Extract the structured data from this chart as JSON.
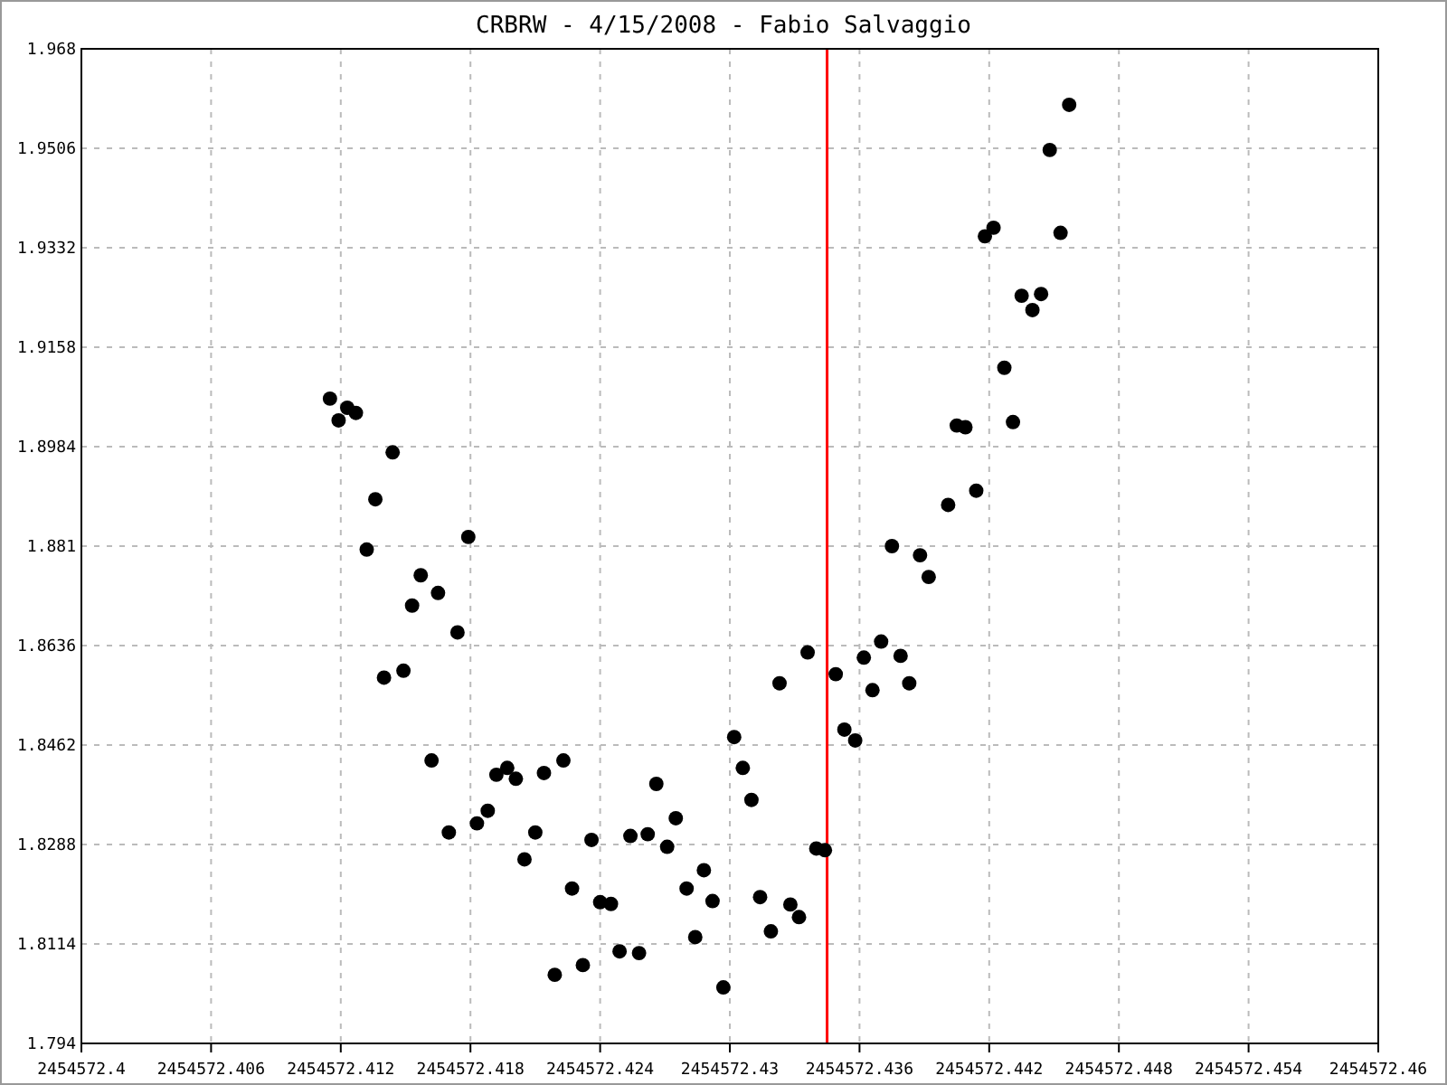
{
  "chart_data": {
    "type": "scatter",
    "title": "CRBRW - 4/15/2008 - Fabio Salvaggio",
    "x": [
      2454572.4115,
      2454572.4123,
      2454572.4127,
      2454572.4119,
      2454572.4144,
      2454572.4136,
      2454572.4179,
      2454572.4132,
      2454572.4157,
      2454572.4165,
      2454572.4153,
      2454572.4174,
      2454572.4149,
      2454572.414,
      2454572.4162,
      2454572.4223,
      2454572.4197,
      2454572.4192,
      2454572.4201,
      2454572.4214,
      2454572.4188,
      2454572.4183,
      2454572.417,
      2454572.421,
      2454572.4205,
      2454572.4227,
      2454572.4219,
      2454572.4232,
      2454572.4236,
      2454572.424,
      2454572.4245,
      2454572.4249,
      2454572.4258,
      2454572.4254,
      2454572.4262,
      2454572.4266,
      2454572.4275,
      2454572.4271,
      2454572.428,
      2454572.4288,
      2454572.4284,
      2454572.4292,
      2454572.4297,
      2454572.4302,
      2454572.4306,
      2454572.431,
      2454572.4314,
      2454572.4328,
      2454572.4319,
      2454572.4332,
      2454572.434,
      2454572.4344,
      2454572.4323,
      2454572.4336,
      2454572.4349,
      2454572.4353,
      2454572.4358,
      2454572.4362,
      2454572.4366,
      2454572.437,
      2454572.4379,
      2454572.4383,
      2454572.4375,
      2454572.4388,
      2454572.4392,
      2454572.4401,
      2454572.4414,
      2454572.4405,
      2454572.4409,
      2454572.4431,
      2454572.4427,
      2454572.4435,
      2454572.4444,
      2454572.444,
      2454572.4418,
      2454572.4422,
      2454572.4453,
      2454572.4448,
      2454572.4457
    ],
    "values": [
      1.9068,
      1.9052,
      1.9043,
      1.903,
      1.8974,
      1.8892,
      1.8826,
      1.8804,
      1.8759,
      1.8728,
      1.8706,
      1.8659,
      1.8592,
      1.858,
      1.8435,
      1.8435,
      1.8422,
      1.841,
      1.8403,
      1.8413,
      1.8347,
      1.8325,
      1.8309,
      1.8309,
      1.8262,
      1.8211,
      1.806,
      1.8077,
      1.8296,
      1.8187,
      1.8184,
      1.8101,
      1.8098,
      1.8303,
      1.8306,
      1.8394,
      1.8334,
      1.8284,
      1.8211,
      1.8243,
      1.8126,
      1.8189,
      1.8038,
      1.8476,
      1.8422,
      1.8366,
      1.8196,
      1.8183,
      1.8136,
      1.8161,
      1.8281,
      1.8278,
      1.857,
      1.8624,
      1.8586,
      1.8489,
      1.847,
      1.8615,
      1.8558,
      1.8643,
      1.8618,
      1.857,
      1.881,
      1.8794,
      1.8756,
      1.8882,
      1.8907,
      1.9021,
      1.9018,
      1.9027,
      1.9122,
      1.9248,
      1.9251,
      1.9223,
      1.9352,
      1.9367,
      1.9358,
      1.9503,
      1.9582
    ],
    "color": "#000000",
    "marker": "circle",
    "grid": true,
    "xlim": [
      2454572.4,
      2454572.46
    ],
    "xticks": [
      2454572.4,
      2454572.406,
      2454572.412,
      2454572.418,
      2454572.424,
      2454572.43,
      2454572.436,
      2454572.442,
      2454572.448,
      2454572.454,
      2454572.46
    ],
    "ylim": [
      1.794,
      1.968
    ],
    "yticks": [
      1.794,
      1.8114,
      1.8288,
      1.8462,
      1.8636,
      1.881,
      1.9158,
      1.8984,
      1.9332,
      1.9506,
      1.968
    ],
    "ref_lines": [
      {
        "axis": "x",
        "value": 2454572.4345,
        "color": "#ff0000"
      }
    ]
  }
}
